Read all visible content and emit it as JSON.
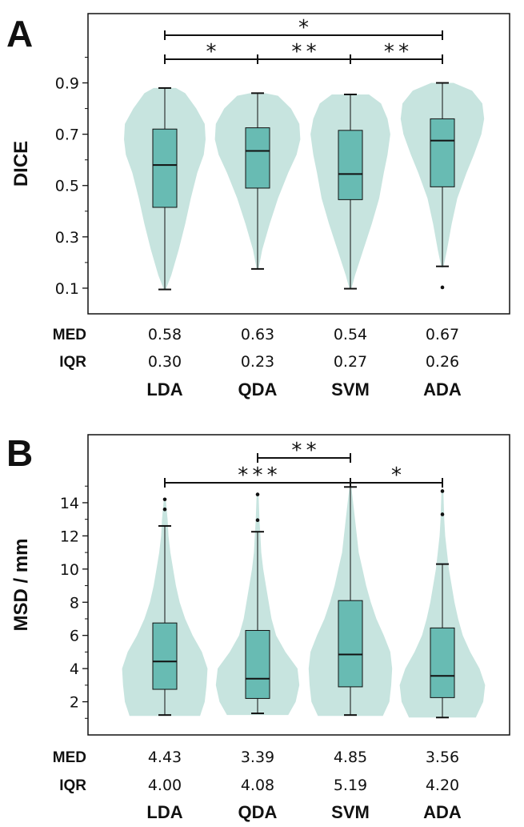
{
  "colors": {
    "violin": "#c7e4df",
    "box": "#68bbb3",
    "line": "#111111"
  },
  "chart_data": [
    {
      "type": "violin",
      "panel_label": "A",
      "ylabel": "DICE",
      "ylim": [
        0.0,
        1.17
      ],
      "yticks": [
        {
          "v": 0.1,
          "label": "0.1"
        },
        {
          "v": 0.3,
          "label": "0.3"
        },
        {
          "v": 0.5,
          "label": "0.5"
        },
        {
          "v": 0.7,
          "label": "0.7"
        },
        {
          "v": 0.9,
          "label": "0.9"
        }
      ],
      "minor_ticks": [
        0.2,
        0.4,
        0.6,
        0.8,
        1.0
      ],
      "categories": [
        "LDA",
        "QDA",
        "SVM",
        "ADA"
      ],
      "box": [
        {
          "whislo": 0.095,
          "q1": 0.415,
          "med": 0.58,
          "q3": 0.72,
          "whishi": 0.88,
          "fliers": []
        },
        {
          "whislo": 0.175,
          "q1": 0.49,
          "med": 0.635,
          "q3": 0.725,
          "whishi": 0.86,
          "fliers": []
        },
        {
          "whislo": 0.098,
          "q1": 0.445,
          "med": 0.545,
          "q3": 0.715,
          "whishi": 0.855,
          "fliers": []
        },
        {
          "whislo": 0.185,
          "q1": 0.495,
          "med": 0.675,
          "q3": 0.76,
          "whishi": 0.9,
          "fliers": [
            0.103
          ]
        }
      ],
      "violin_half_widths": [
        [
          [
            0.095,
            0.01
          ],
          [
            0.15,
            0.07
          ],
          [
            0.25,
            0.15
          ],
          [
            0.35,
            0.22
          ],
          [
            0.45,
            0.28
          ],
          [
            0.55,
            0.35
          ],
          [
            0.62,
            0.42
          ],
          [
            0.68,
            0.44
          ],
          [
            0.74,
            0.43
          ],
          [
            0.8,
            0.34
          ],
          [
            0.86,
            0.22
          ],
          [
            0.88,
            0.12
          ]
        ],
        [
          [
            0.175,
            0.01
          ],
          [
            0.25,
            0.05
          ],
          [
            0.35,
            0.13
          ],
          [
            0.45,
            0.22
          ],
          [
            0.55,
            0.33
          ],
          [
            0.62,
            0.42
          ],
          [
            0.68,
            0.46
          ],
          [
            0.74,
            0.45
          ],
          [
            0.8,
            0.36
          ],
          [
            0.85,
            0.22
          ],
          [
            0.86,
            0.08
          ]
        ],
        [
          [
            0.098,
            0.01
          ],
          [
            0.15,
            0.05
          ],
          [
            0.25,
            0.14
          ],
          [
            0.35,
            0.23
          ],
          [
            0.45,
            0.31
          ],
          [
            0.55,
            0.36
          ],
          [
            0.62,
            0.4
          ],
          [
            0.7,
            0.43
          ],
          [
            0.76,
            0.4
          ],
          [
            0.82,
            0.33
          ],
          [
            0.855,
            0.2
          ]
        ],
        [
          [
            0.18,
            0.01
          ],
          [
            0.25,
            0.05
          ],
          [
            0.35,
            0.1
          ],
          [
            0.45,
            0.16
          ],
          [
            0.55,
            0.26
          ],
          [
            0.62,
            0.34
          ],
          [
            0.7,
            0.42
          ],
          [
            0.76,
            0.45
          ],
          [
            0.82,
            0.43
          ],
          [
            0.87,
            0.32
          ],
          [
            0.9,
            0.12
          ]
        ]
      ],
      "significance": [
        {
          "from": 0,
          "to": 3,
          "level": 2,
          "label": "*"
        },
        {
          "from": 0,
          "to": 1,
          "level": 1,
          "label": "*"
        },
        {
          "from": 1,
          "to": 2,
          "level": 1,
          "label": "**"
        },
        {
          "from": 2,
          "to": 3,
          "level": 1,
          "label": "**"
        }
      ],
      "stats": [
        {
          "label": "MED",
          "values": [
            "0.58",
            "0.63",
            "0.54",
            "0.67"
          ]
        },
        {
          "label": "IQR",
          "values": [
            "0.30",
            "0.23",
            "0.27",
            "0.26"
          ]
        }
      ]
    },
    {
      "type": "violin",
      "panel_label": "B",
      "ylabel": "MSD / mm",
      "ylim": [
        0.0,
        18.1
      ],
      "yticks": [
        {
          "v": 2,
          "label": "2"
        },
        {
          "v": 4,
          "label": "4"
        },
        {
          "v": 6,
          "label": "6"
        },
        {
          "v": 8,
          "label": "8"
        },
        {
          "v": 10,
          "label": "10"
        },
        {
          "v": 12,
          "label": "12"
        },
        {
          "v": 14,
          "label": "14"
        }
      ],
      "minor_ticks": [
        1,
        3,
        5,
        7,
        9,
        11,
        13,
        15
      ],
      "categories": [
        "LDA",
        "QDA",
        "SVM",
        "ADA"
      ],
      "box": [
        {
          "whislo": 1.2,
          "q1": 2.75,
          "med": 4.43,
          "q3": 6.75,
          "whishi": 12.6,
          "fliers": [
            13.6,
            14.2
          ]
        },
        {
          "whislo": 1.3,
          "q1": 2.2,
          "med": 3.39,
          "q3": 6.3,
          "whishi": 12.25,
          "fliers": [
            12.95,
            14.5
          ]
        },
        {
          "whislo": 1.2,
          "q1": 2.9,
          "med": 4.85,
          "q3": 8.1,
          "whishi": 14.95,
          "fliers": []
        },
        {
          "whislo": 1.05,
          "q1": 2.25,
          "med": 3.56,
          "q3": 6.45,
          "whishi": 10.3,
          "fliers": [
            13.3,
            14.7
          ]
        }
      ],
      "violin_half_widths": [
        [
          [
            1.15,
            0.38
          ],
          [
            2,
            0.43
          ],
          [
            3,
            0.45
          ],
          [
            4,
            0.46
          ],
          [
            5,
            0.4
          ],
          [
            6,
            0.3
          ],
          [
            7,
            0.22
          ],
          [
            8,
            0.16
          ],
          [
            9,
            0.12
          ],
          [
            10,
            0.09
          ],
          [
            11,
            0.06
          ],
          [
            12,
            0.04
          ],
          [
            13,
            0.03
          ],
          [
            14.2,
            0.01
          ]
        ],
        [
          [
            1.2,
            0.33
          ],
          [
            2,
            0.41
          ],
          [
            3,
            0.45
          ],
          [
            4,
            0.43
          ],
          [
            5,
            0.3
          ],
          [
            6,
            0.2
          ],
          [
            7,
            0.15
          ],
          [
            8,
            0.12
          ],
          [
            9,
            0.09
          ],
          [
            10,
            0.06
          ],
          [
            11,
            0.04
          ],
          [
            12,
            0.03
          ],
          [
            13,
            0.02
          ],
          [
            14.5,
            0.01
          ]
        ],
        [
          [
            1.15,
            0.35
          ],
          [
            2,
            0.42
          ],
          [
            3,
            0.44
          ],
          [
            4,
            0.45
          ],
          [
            5,
            0.43
          ],
          [
            6,
            0.36
          ],
          [
            7,
            0.28
          ],
          [
            8,
            0.22
          ],
          [
            9,
            0.17
          ],
          [
            10,
            0.13
          ],
          [
            11,
            0.09
          ],
          [
            12,
            0.07
          ],
          [
            13,
            0.05
          ],
          [
            14.95,
            0.01
          ]
        ],
        [
          [
            1.05,
            0.36
          ],
          [
            2,
            0.44
          ],
          [
            3,
            0.46
          ],
          [
            4,
            0.4
          ],
          [
            5,
            0.3
          ],
          [
            6,
            0.22
          ],
          [
            7,
            0.17
          ],
          [
            8,
            0.13
          ],
          [
            9,
            0.1
          ],
          [
            10,
            0.07
          ],
          [
            11,
            0.05
          ],
          [
            12,
            0.03
          ],
          [
            13,
            0.02
          ],
          [
            14.7,
            0.01
          ]
        ]
      ],
      "significance": [
        {
          "from": 1,
          "to": 2,
          "level": 2,
          "label": "**"
        },
        {
          "from": 0,
          "to": 2,
          "level": 1,
          "label": "***"
        },
        {
          "from": 2,
          "to": 3,
          "level": 1,
          "label": "*"
        }
      ],
      "stats": [
        {
          "label": "MED",
          "values": [
            "4.43",
            "3.39",
            "4.85",
            "3.56"
          ]
        },
        {
          "label": "IQR",
          "values": [
            "4.00",
            "4.08",
            "5.19",
            "4.20"
          ]
        }
      ]
    }
  ]
}
